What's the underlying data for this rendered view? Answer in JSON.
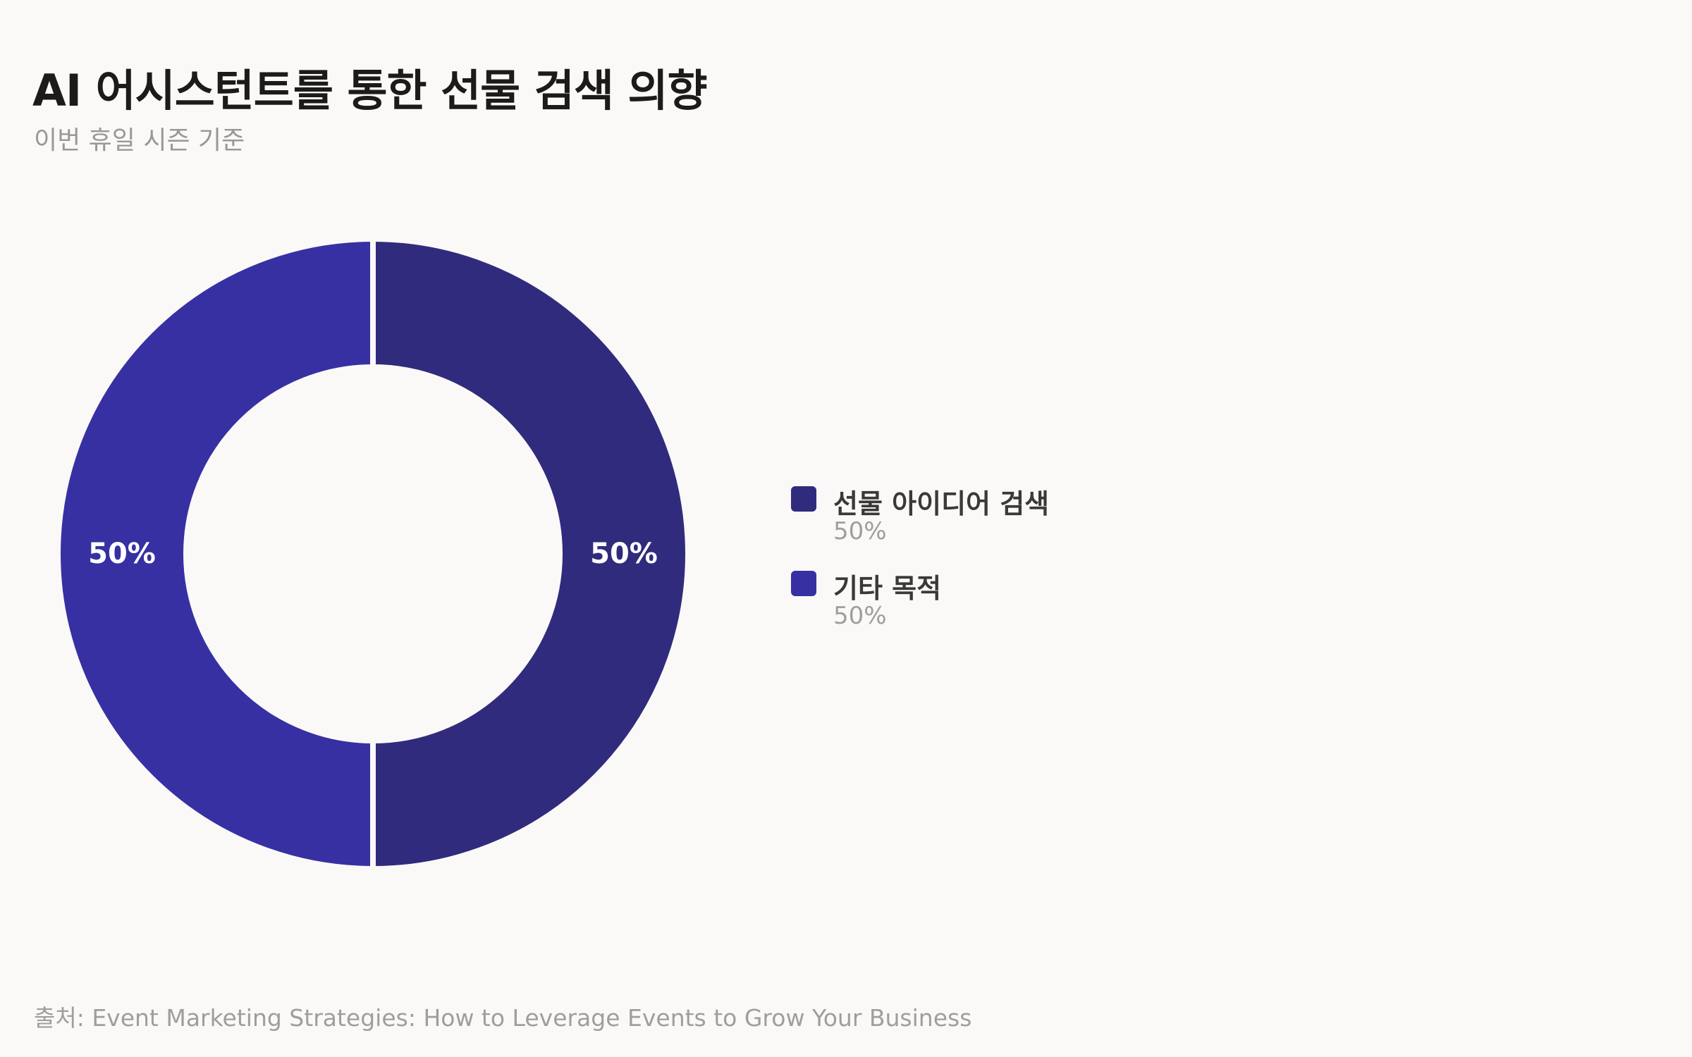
{
  "header": {
    "title": "AI 어시스턴트를 통한 선물 검색 의향",
    "subtitle": "이번 휴일 시즌 기준"
  },
  "chart_data": {
    "type": "pie",
    "variant": "donut",
    "categories": [
      "선물 아이디어 검색",
      "기타 목적"
    ],
    "values": [
      50,
      50
    ],
    "unit": "%",
    "data_labels": [
      "50%",
      "50%"
    ],
    "colors": [
      "#312b7d",
      "#3730a3"
    ],
    "legend_position": "right"
  },
  "legend": {
    "items": [
      {
        "label": "선물 아이디어 검색",
        "value": "50%",
        "color": "#312b7d"
      },
      {
        "label": "기타 목적",
        "value": "50%",
        "color": "#3730a3"
      }
    ]
  },
  "footer": {
    "source": "출처: Event Marketing Strategies: How to Leverage Events to Grow Your Business"
  }
}
